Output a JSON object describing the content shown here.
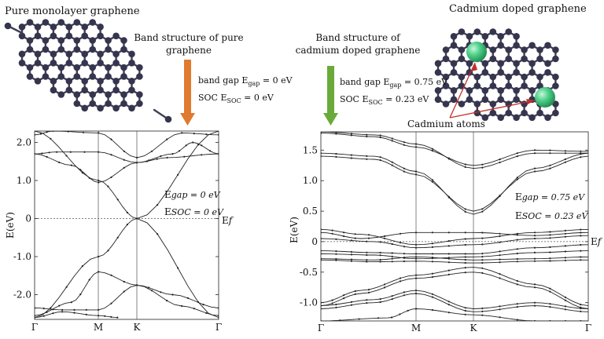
{
  "left": {
    "title": "Pure monolayer graphene",
    "arrow_caption": [
      "Band structure of pure",
      "graphene"
    ],
    "arrow_color": "#e07a2e",
    "gap_label": "band gap E",
    "gap_sub": "gap",
    "gap_value": "= 0 eV",
    "soc_label": "SOC E",
    "soc_sub": "SOC",
    "soc_value": "= 0 eV",
    "plot": {
      "ylabel": "E(eV)",
      "yticks": [
        "2.0",
        "1.0",
        "0",
        "-1.0",
        "-2.0"
      ],
      "ytick_values": [
        2.0,
        1.0,
        0,
        -1.0,
        -2.0
      ],
      "xticks": [
        "Γ",
        "M",
        "K",
        "Γ"
      ],
      "ylim": [
        -2.65,
        2.3
      ],
      "ef_label": "Ef",
      "egap_prefix": "E",
      "egap_text": "gap = 0 eV",
      "esoc_prefix": "E",
      "esoc_text": "SOC = 0 eV"
    }
  },
  "right": {
    "title": "Cadmium doped graphene",
    "arrow_caption": [
      "Band structure of",
      "cadmium doped graphene"
    ],
    "arrow_color": "#6aaa3a",
    "gap_label": "band gap E",
    "gap_sub": "gap",
    "gap_value": "= 0.75 eV",
    "soc_label": "SOC E",
    "soc_sub": "SOC",
    "soc_value": "= 0.23 eV",
    "atoms_label": "Cadmium atoms",
    "cd_color": "#4fd18b",
    "plot": {
      "ylabel": "E(eV)",
      "yticks": [
        "1.5",
        "1.0",
        "0.5",
        "0",
        "-0.5",
        "-1.0"
      ],
      "ytick_values": [
        1.5,
        1.0,
        0.5,
        0,
        -0.5,
        -1.0
      ],
      "xticks": [
        "Γ",
        "M",
        "K",
        "Γ"
      ],
      "ylim": [
        -1.3,
        1.8
      ],
      "ef_label": "Ef",
      "egap_prefix": "E",
      "egap_text": "gap = 0.75 eV",
      "esoc_prefix": "E",
      "esoc_text": "SOC = 0.23 eV"
    }
  }
}
